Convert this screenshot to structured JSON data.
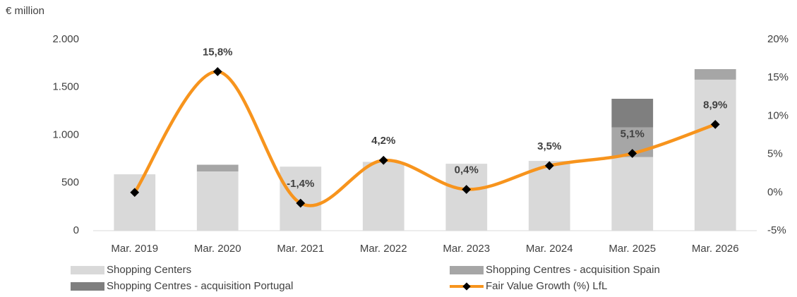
{
  "chart_data": {
    "type": "bar",
    "y_axis_label": "€ million",
    "categories": [
      "Mar. 2019",
      "Mar. 2020",
      "Mar. 2021",
      "Mar. 2022",
      "Mar. 2023",
      "Mar. 2024",
      "Mar. 2025",
      "Mar. 2026"
    ],
    "stacked": true,
    "series": [
      {
        "name": "Shopping Centers",
        "type": "bar",
        "color": "#d9d9d9",
        "values": [
          590,
          620,
          670,
          720,
          700,
          730,
          770,
          1580
        ]
      },
      {
        "name": "Shopping Centres - acquisition Spain",
        "type": "bar",
        "color": "#a6a6a6",
        "values": [
          0,
          70,
          0,
          0,
          0,
          0,
          310,
          110
        ]
      },
      {
        "name": "Shopping Centres - acquisition Portugal",
        "type": "bar",
        "color": "#7f7f7f",
        "values": [
          0,
          0,
          0,
          0,
          0,
          0,
          300,
          0
        ]
      },
      {
        "name": "Fair Value Growth (%) LfL",
        "type": "line",
        "axis": "y2",
        "color": "#f7941d",
        "marker_color": "#000000",
        "values": [
          0,
          15.8,
          -1.4,
          4.2,
          0.4,
          3.5,
          5.1,
          8.9
        ],
        "value_labels": [
          null,
          "15,8%",
          "-1,4%",
          "4,2%",
          "0,4%",
          "3,5%",
          "5,1%",
          "8,9%"
        ]
      }
    ],
    "ylim": [
      0,
      2000
    ],
    "yticks": [
      0,
      500,
      {
        "value": 1000,
        "label": "1.000"
      },
      {
        "value": 1500,
        "label": "1.500"
      },
      {
        "value": 2000,
        "label": "2.000"
      }
    ],
    "y2lim": [
      -5,
      20
    ],
    "y2ticks": [
      {
        "value": -5,
        "label": "-5%"
      },
      {
        "value": 0,
        "label": "0%"
      },
      {
        "value": 5,
        "label": "5%"
      },
      {
        "value": 10,
        "label": "10%"
      },
      {
        "value": 15,
        "label": "15%"
      },
      {
        "value": 20,
        "label": "20%"
      }
    ],
    "grid": false,
    "legend": "bottom"
  }
}
